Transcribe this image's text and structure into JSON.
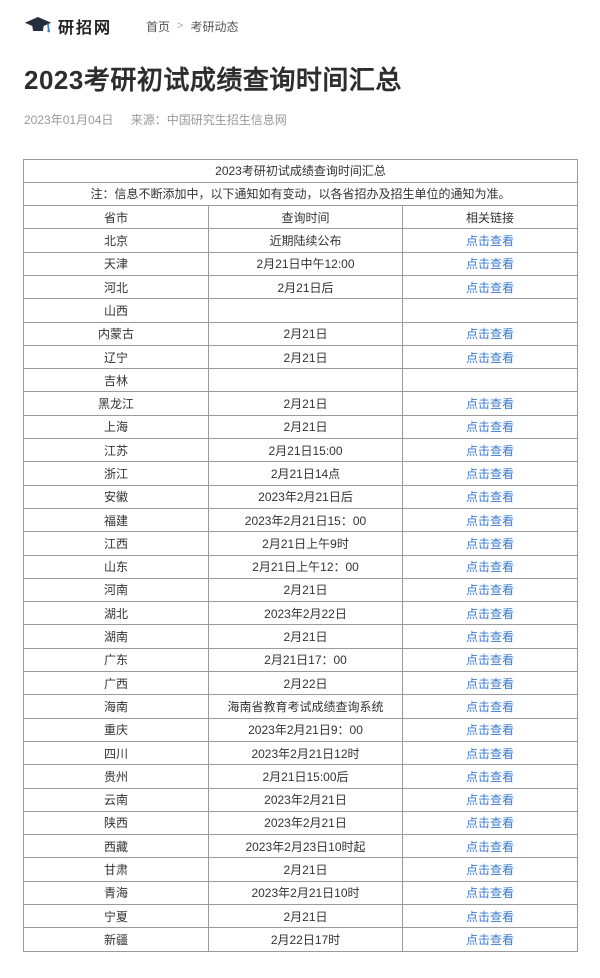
{
  "header": {
    "logo_text": "研招网",
    "breadcrumb": {
      "home": "首页",
      "separator": ">",
      "current": "考研动态"
    }
  },
  "article": {
    "title": "2023考研初试成绩查询时间汇总",
    "date": "2023年01月04日",
    "source": "来源：中国研究生招生信息网"
  },
  "table": {
    "caption": "2023考研初试成绩查询时间汇总",
    "note": "注：信息不断添加中，以下通知如有变动，以各省招办及招生单位的通知为准。",
    "columns": [
      "省市",
      "查询时间",
      "相关链接"
    ],
    "link_label": "点击查看",
    "rows": [
      {
        "province": "北京",
        "time": "近期陆续公布",
        "link": true
      },
      {
        "province": "天津",
        "time": "2月21日中午12:00",
        "link": true
      },
      {
        "province": "河北",
        "time": "2月21日后",
        "link": true
      },
      {
        "province": "山西",
        "time": "",
        "link": false
      },
      {
        "province": "内蒙古",
        "time": "2月21日",
        "link": true
      },
      {
        "province": "辽宁",
        "time": "2月21日",
        "link": true
      },
      {
        "province": "吉林",
        "time": "",
        "link": false
      },
      {
        "province": "黑龙江",
        "time": "2月21日",
        "link": true
      },
      {
        "province": "上海",
        "time": "2月21日",
        "link": true
      },
      {
        "province": "江苏",
        "time": "2月21日15:00",
        "link": true
      },
      {
        "province": "浙江",
        "time": "2月21日14点",
        "link": true
      },
      {
        "province": "安徽",
        "time": "2023年2月21日后",
        "link": true
      },
      {
        "province": "福建",
        "time": "2023年2月21日15：00",
        "link": true
      },
      {
        "province": "江西",
        "time": "2月21日上午9时",
        "link": true
      },
      {
        "province": "山东",
        "time": "2月21日上午12：00",
        "link": true
      },
      {
        "province": "河南",
        "time": "2月21日",
        "link": true
      },
      {
        "province": "湖北",
        "time": "2023年2月22日",
        "link": true
      },
      {
        "province": "湖南",
        "time": "2月21日",
        "link": true
      },
      {
        "province": "广东",
        "time": "2月21日17：00",
        "link": true
      },
      {
        "province": "广西",
        "time": "2月22日",
        "link": true
      },
      {
        "province": "海南",
        "time": "海南省教育考试成绩查询系统",
        "link": true
      },
      {
        "province": "重庆",
        "time": "2023年2月21日9：00",
        "link": true
      },
      {
        "province": "四川",
        "time": "2023年2月21日12时",
        "link": true
      },
      {
        "province": "贵州",
        "time": "2月21日15:00后",
        "link": true
      },
      {
        "province": "云南",
        "time": "2023年2月21日",
        "link": true
      },
      {
        "province": "陕西",
        "time": "2023年2月21日",
        "link": true
      },
      {
        "province": "西藏",
        "time": "2023年2月23日10时起",
        "link": true
      },
      {
        "province": "甘肃",
        "time": "2月21日",
        "link": true
      },
      {
        "province": "青海",
        "time": "2023年2月21日10时",
        "link": true
      },
      {
        "province": "宁夏",
        "time": "2月21日",
        "link": true
      },
      {
        "province": "新疆",
        "time": "2月22日17时",
        "link": true
      }
    ]
  },
  "colors": {
    "link_blue": "#3b7bd0",
    "note_red": "#ff0000",
    "table_border": "#9b9b9b",
    "body_text": "#333333",
    "muted_text": "#999999"
  }
}
